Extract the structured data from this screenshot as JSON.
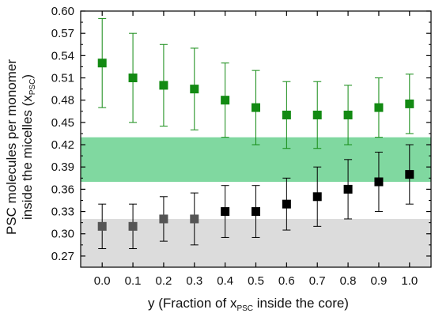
{
  "chart_data": {
    "type": "scatter",
    "xlabel": "y (Fraction of x",
    "xlabel_sub": "PSC",
    "xlabel_end": " inside the core)",
    "ylabel_line1": "PSC molecules per monomer",
    "ylabel_line2": "inside the micelles (x",
    "ylabel_sub": "PSC",
    "ylabel_end": ")",
    "xlim": [
      -0.07,
      1.07
    ],
    "ylim": [
      0.255,
      0.6
    ],
    "x_ticks": [
      "0.0",
      "0.1",
      "0.2",
      "0.3",
      "0.4",
      "0.5",
      "0.6",
      "0.7",
      "0.8",
      "0.9",
      "1.0"
    ],
    "y_ticks": [
      "0.60",
      "0.57",
      "0.54",
      "0.51",
      "0.48",
      "0.45",
      "0.42",
      "0.39",
      "0.36",
      "0.33",
      "0.30",
      "0.27"
    ],
    "grid": false,
    "bands": [
      {
        "y_from": 0.37,
        "y_to": 0.43,
        "color": "#80d8a0"
      },
      {
        "y_from": 0.255,
        "y_to": 0.32,
        "color": "#dcdcdc"
      }
    ],
    "series": [
      {
        "color": "#138a13",
        "marker": "square",
        "x": [
          0.0,
          0.1,
          0.2,
          0.3,
          0.4,
          0.5,
          0.6,
          0.7,
          0.8,
          0.9,
          1.0
        ],
        "y": [
          0.53,
          0.51,
          0.5,
          0.495,
          0.48,
          0.47,
          0.46,
          0.46,
          0.46,
          0.47,
          0.475
        ],
        "err_low": [
          0.47,
          0.45,
          0.445,
          0.44,
          0.43,
          0.42,
          0.415,
          0.415,
          0.42,
          0.43,
          0.435
        ],
        "err_high": [
          0.59,
          0.57,
          0.555,
          0.55,
          0.53,
          0.52,
          0.505,
          0.505,
          0.5,
          0.51,
          0.515
        ]
      },
      {
        "color": "#000000",
        "marker": "square",
        "x": [
          0.0,
          0.1,
          0.2,
          0.3,
          0.4,
          0.5,
          0.6,
          0.7,
          0.8,
          0.9,
          1.0
        ],
        "y": [
          0.31,
          0.31,
          0.32,
          0.32,
          0.33,
          0.33,
          0.34,
          0.35,
          0.36,
          0.37,
          0.38
        ],
        "err_low": [
          0.28,
          0.28,
          0.29,
          0.285,
          0.295,
          0.295,
          0.305,
          0.31,
          0.32,
          0.33,
          0.34
        ],
        "err_high": [
          0.34,
          0.34,
          0.35,
          0.355,
          0.365,
          0.365,
          0.375,
          0.39,
          0.4,
          0.41,
          0.42
        ]
      }
    ]
  }
}
